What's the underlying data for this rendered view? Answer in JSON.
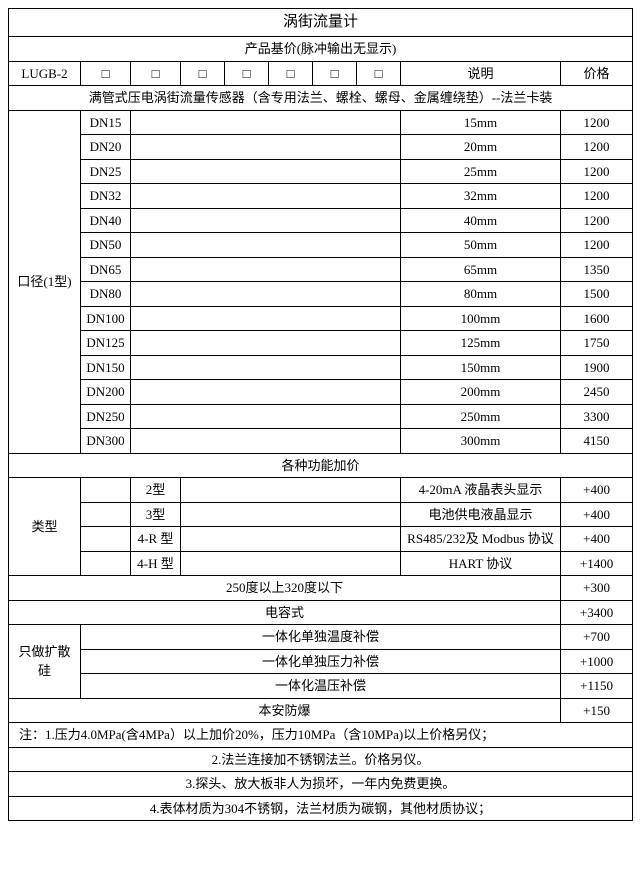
{
  "title": "涡街流量计",
  "subtitle": "产品基价(脉冲输出无显示)",
  "header": {
    "model": "LUGB-2",
    "sq": "□",
    "desc_label": "说明",
    "price_label": "价格"
  },
  "sensor_desc": "满管式压电涡街流量传感器（含专用法兰、螺栓、螺母、金属缠绕垫）--法兰卡装",
  "caliber_label": "口径(1型)",
  "calibers": [
    {
      "dn": "DN15",
      "mm": "15mm",
      "price": "1200"
    },
    {
      "dn": "DN20",
      "mm": "20mm",
      "price": "1200"
    },
    {
      "dn": "DN25",
      "mm": "25mm",
      "price": "1200"
    },
    {
      "dn": "DN32",
      "mm": "32mm",
      "price": "1200"
    },
    {
      "dn": "DN40",
      "mm": "40mm",
      "price": "1200"
    },
    {
      "dn": "DN50",
      "mm": "50mm",
      "price": "1200"
    },
    {
      "dn": "DN65",
      "mm": "65mm",
      "price": "1350"
    },
    {
      "dn": "DN80",
      "mm": "80mm",
      "price": "1500"
    },
    {
      "dn": "DN100",
      "mm": "100mm",
      "price": "1600"
    },
    {
      "dn": "DN125",
      "mm": "125mm",
      "price": "1750"
    },
    {
      "dn": "DN150",
      "mm": "150mm",
      "price": "1900"
    },
    {
      "dn": "DN200",
      "mm": "200mm",
      "price": "2450"
    },
    {
      "dn": "DN250",
      "mm": "250mm",
      "price": "3300"
    },
    {
      "dn": "DN300",
      "mm": "300mm",
      "price": "4150"
    }
  ],
  "func_title": "各种功能加价",
  "type_label": "类型",
  "types": [
    {
      "t": "2型",
      "desc": "4-20mA 液晶表头显示",
      "price": "+400"
    },
    {
      "t": "3型",
      "desc": "电池供电液晶显示",
      "price": "+400"
    },
    {
      "t": "4-R 型",
      "desc": "RS485/232及 Modbus 协议",
      "price": "+400"
    },
    {
      "t": "4-H 型",
      "desc": "HART 协议",
      "price": "+1400"
    }
  ],
  "temp_row": {
    "desc": "250度以上320度以下",
    "price": "+300"
  },
  "cap_row": {
    "desc": "电容式",
    "price": "+3400"
  },
  "diffuse_label": "只做扩散硅",
  "diffuse": [
    {
      "desc": "一体化单独温度补偿",
      "price": "+700"
    },
    {
      "desc": "一体化单独压力补偿",
      "price": "+1000"
    },
    {
      "desc": "一体化温压补偿",
      "price": "+1150"
    }
  ],
  "safety_row": {
    "desc": "本安防爆",
    "price": "+150"
  },
  "notes": [
    "注：1.压力4.0MPa(含4MPa）以上加价20%，压力10MPa（含10MPa)以上价格另仪；",
    "2.法兰连接加不锈钢法兰。价格另仪。",
    "3.探头、放大板非人为损坏，一年内免费更换。",
    "4.表体材质为304不锈钢，法兰材质为碳钢，其他材质协议；"
  ]
}
